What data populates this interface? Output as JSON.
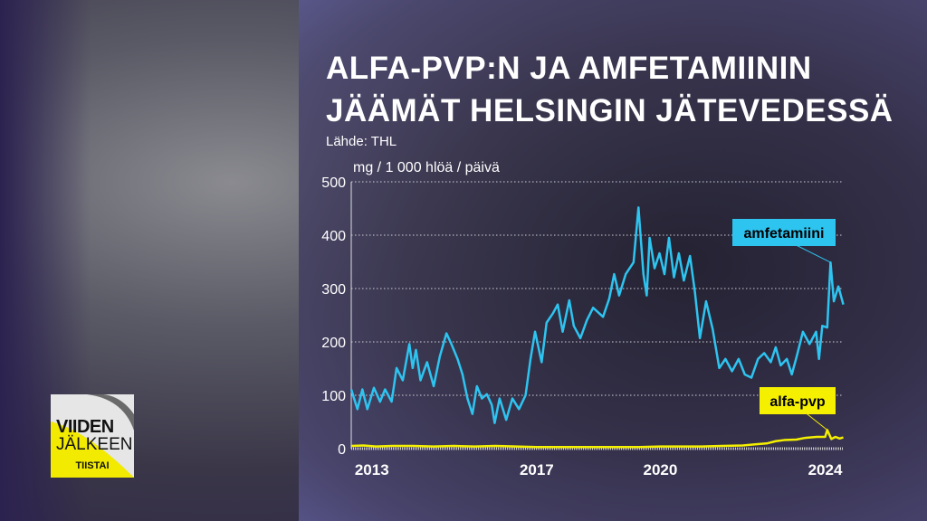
{
  "title_lines": [
    "ALFA-PVP:N JA AMFETAMIININ",
    "JÄÄMÄT HELSINGIN JÄTEVEDESSÄ"
  ],
  "source": "Lähde: THL",
  "logo": {
    "line1": "VIIDEN",
    "line2": "JÄLKEEN",
    "line3": "TIISTAI"
  },
  "chart_data": {
    "type": "line",
    "ylabel": "mg / 1 000 hlöä / päivä",
    "ylim": [
      0,
      500
    ],
    "yticks": [
      0,
      100,
      200,
      300,
      400,
      500
    ],
    "xlim": [
      2012.5,
      2024.45
    ],
    "xticks": [
      2013,
      2017,
      2020,
      2024
    ],
    "grid": "horizontal dotted",
    "series": [
      {
        "name": "amfetamiini",
        "color": "#2ec4f0",
        "points": [
          [
            2012.5,
            111
          ],
          [
            2012.65,
            74
          ],
          [
            2012.77,
            111
          ],
          [
            2012.89,
            74
          ],
          [
            2013.05,
            114
          ],
          [
            2013.2,
            88
          ],
          [
            2013.32,
            111
          ],
          [
            2013.48,
            88
          ],
          [
            2013.6,
            151
          ],
          [
            2013.75,
            128
          ],
          [
            2013.91,
            196
          ],
          [
            2013.99,
            151
          ],
          [
            2014.07,
            185
          ],
          [
            2014.18,
            128
          ],
          [
            2014.34,
            162
          ],
          [
            2014.5,
            117
          ],
          [
            2014.65,
            173
          ],
          [
            2014.81,
            216
          ],
          [
            2014.93,
            196
          ],
          [
            2015.08,
            168
          ],
          [
            2015.2,
            139
          ],
          [
            2015.32,
            94
          ],
          [
            2015.44,
            65
          ],
          [
            2015.55,
            117
          ],
          [
            2015.67,
            94
          ],
          [
            2015.79,
            102
          ],
          [
            2015.91,
            82
          ],
          [
            2015.98,
            48
          ],
          [
            2016.1,
            94
          ],
          [
            2016.26,
            54
          ],
          [
            2016.41,
            94
          ],
          [
            2016.57,
            74
          ],
          [
            2016.73,
            100
          ],
          [
            2016.85,
            168
          ],
          [
            2016.96,
            219
          ],
          [
            2017.12,
            162
          ],
          [
            2017.24,
            236
          ],
          [
            2017.39,
            253
          ],
          [
            2017.51,
            270
          ],
          [
            2017.63,
            219
          ],
          [
            2017.79,
            278
          ],
          [
            2017.9,
            230
          ],
          [
            2018.06,
            207
          ],
          [
            2018.22,
            241
          ],
          [
            2018.37,
            264
          ],
          [
            2018.61,
            247
          ],
          [
            2018.76,
            281
          ],
          [
            2018.88,
            327
          ],
          [
            2019.0,
            287
          ],
          [
            2019.16,
            327
          ],
          [
            2019.35,
            349
          ],
          [
            2019.47,
            452
          ],
          [
            2019.59,
            327
          ],
          [
            2019.67,
            287
          ],
          [
            2019.74,
            395
          ],
          [
            2019.86,
            338
          ],
          [
            2019.98,
            366
          ],
          [
            2020.1,
            327
          ],
          [
            2020.21,
            395
          ],
          [
            2020.33,
            321
          ],
          [
            2020.45,
            366
          ],
          [
            2020.57,
            315
          ],
          [
            2020.72,
            361
          ],
          [
            2020.84,
            293
          ],
          [
            2020.96,
            207
          ],
          [
            2021.11,
            276
          ],
          [
            2021.27,
            224
          ],
          [
            2021.43,
            151
          ],
          [
            2021.58,
            168
          ],
          [
            2021.74,
            145
          ],
          [
            2021.9,
            168
          ],
          [
            2022.05,
            139
          ],
          [
            2022.21,
            133
          ],
          [
            2022.37,
            168
          ],
          [
            2022.52,
            179
          ],
          [
            2022.68,
            162
          ],
          [
            2022.8,
            190
          ],
          [
            2022.92,
            156
          ],
          [
            2023.07,
            168
          ],
          [
            2023.19,
            139
          ],
          [
            2023.31,
            173
          ],
          [
            2023.46,
            219
          ],
          [
            2023.62,
            196
          ],
          [
            2023.78,
            219
          ],
          [
            2023.85,
            168
          ],
          [
            2023.93,
            230
          ],
          [
            2024.05,
            227
          ],
          [
            2024.13,
            349
          ],
          [
            2024.21,
            276
          ],
          [
            2024.32,
            304
          ],
          [
            2024.44,
            270
          ]
        ]
      },
      {
        "name": "alfa-pvp",
        "color": "#f5f000",
        "points": [
          [
            2012.5,
            5
          ],
          [
            2012.8,
            6
          ],
          [
            2013.1,
            4
          ],
          [
            2013.5,
            5
          ],
          [
            2014.0,
            5
          ],
          [
            2014.5,
            4
          ],
          [
            2015.0,
            5
          ],
          [
            2015.5,
            4
          ],
          [
            2016.0,
            5
          ],
          [
            2016.5,
            4
          ],
          [
            2017.0,
            3
          ],
          [
            2017.5,
            3
          ],
          [
            2018.0,
            3
          ],
          [
            2018.5,
            3
          ],
          [
            2019.0,
            3
          ],
          [
            2019.5,
            3
          ],
          [
            2020.0,
            4
          ],
          [
            2020.5,
            4
          ],
          [
            2021.0,
            4
          ],
          [
            2021.5,
            5
          ],
          [
            2022.0,
            6
          ],
          [
            2022.3,
            8
          ],
          [
            2022.6,
            10
          ],
          [
            2022.8,
            14
          ],
          [
            2023.0,
            16
          ],
          [
            2023.3,
            17
          ],
          [
            2023.5,
            20
          ],
          [
            2023.8,
            22
          ],
          [
            2024.0,
            22
          ],
          [
            2024.05,
            35
          ],
          [
            2024.15,
            18
          ],
          [
            2024.25,
            22
          ],
          [
            2024.35,
            19
          ],
          [
            2024.44,
            21
          ]
        ]
      }
    ]
  }
}
